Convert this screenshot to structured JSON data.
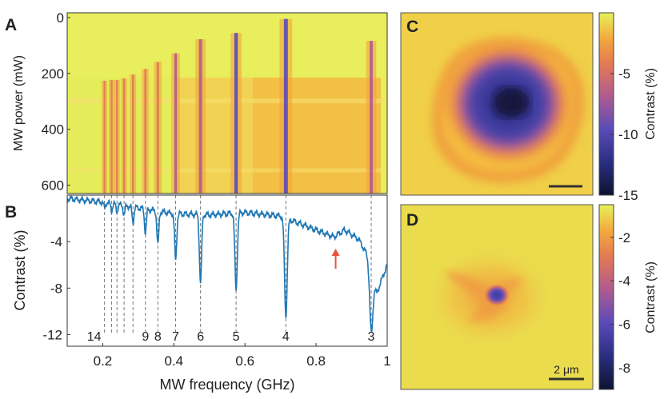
{
  "colors": {
    "low": "#0d1330",
    "mid": "#5a4bb8",
    "midhigh": "#e07a55",
    "high": "#e6f25a",
    "line": "#1f77b4",
    "arrow": "#e8553a"
  },
  "chart_data": [
    {
      "panel": "A",
      "type": "heatmap",
      "xlabel": "",
      "ylabel": "MW power (mW)",
      "xlim": [
        0.1,
        1.0
      ],
      "ylim": [
        0,
        630
      ],
      "ytick_labels": [
        "0",
        "200",
        "400",
        "600"
      ],
      "yticks": [
        0,
        200,
        400,
        600
      ],
      "resonance_frequencies_ghz": [
        0.205,
        0.225,
        0.24,
        0.26,
        0.285,
        0.32,
        0.355,
        0.405,
        0.475,
        0.575,
        0.715,
        0.955
      ],
      "contrast_range_percent": [
        -15,
        0
      ]
    },
    {
      "panel": "B",
      "type": "line",
      "xlabel": "MW frequency (GHz)",
      "ylabel": "Contrast (%)",
      "xlim": [
        0.1,
        1.0
      ],
      "ylim": [
        -13,
        0
      ],
      "xticks": [
        0.2,
        0.4,
        0.6,
        0.8,
        1.0
      ],
      "xtick_labels": [
        "0.2",
        "0.4",
        "0.6",
        "0.8",
        "1"
      ],
      "yticks": [
        -4,
        -8,
        -12
      ],
      "ytick_labels": [
        "-4",
        "-8",
        "-12"
      ],
      "baseline": [
        [
          0.1,
          -0.3
        ],
        [
          0.2,
          -0.6
        ],
        [
          0.3,
          -1.1
        ],
        [
          0.4,
          -1.6
        ],
        [
          0.5,
          -1.7
        ],
        [
          0.6,
          -1.5
        ],
        [
          0.7,
          -1.8
        ],
        [
          0.8,
          -3.0
        ],
        [
          0.85,
          -3.6
        ],
        [
          0.88,
          -3.0
        ],
        [
          0.92,
          -3.8
        ],
        [
          0.95,
          -5.5
        ],
        [
          0.97,
          -8.5
        ],
        [
          0.99,
          -6.8
        ],
        [
          1.0,
          -6.0
        ]
      ],
      "dips": [
        {
          "x": 0.205,
          "depth": 0.5,
          "label": "14"
        },
        {
          "x": 0.225,
          "depth": 0.6,
          "label": ""
        },
        {
          "x": 0.24,
          "depth": 0.6,
          "label": ""
        },
        {
          "x": 0.26,
          "depth": 0.8,
          "label": ""
        },
        {
          "x": 0.285,
          "depth": 1.3,
          "label": ""
        },
        {
          "x": 0.32,
          "depth": 2.0,
          "label": "9"
        },
        {
          "x": 0.355,
          "depth": 2.9,
          "label": "8"
        },
        {
          "x": 0.405,
          "depth": 4.0,
          "label": "7"
        },
        {
          "x": 0.475,
          "depth": 5.8,
          "label": "6"
        },
        {
          "x": 0.575,
          "depth": 6.6,
          "label": "5"
        },
        {
          "x": 0.715,
          "depth": 8.4,
          "label": "4"
        },
        {
          "x": 0.955,
          "depth": 5.6,
          "label": "3"
        }
      ],
      "arrow_x": 0.855
    },
    {
      "panel": "C",
      "type": "heatmap",
      "colorbar_label": "Contrast (%)",
      "colorbar_range": [
        -15,
        0
      ],
      "colorbar_ticks": [
        -5,
        -10,
        -15
      ],
      "colorbar_tick_labels": [
        "-5",
        "-10",
        "-15"
      ]
    },
    {
      "panel": "D",
      "type": "heatmap",
      "colorbar_label": "Contrast (%)",
      "colorbar_range": [
        -9,
        -0.5
      ],
      "colorbar_ticks": [
        -2,
        -4,
        -6,
        -8
      ],
      "colorbar_tick_labels": [
        "-2",
        "-4",
        "-6",
        "-8"
      ],
      "scale_bar_label": "2 μm"
    }
  ],
  "labels": {
    "panel_a": "A",
    "panel_b": "B",
    "panel_c": "C",
    "panel_d": "D",
    "ylabel_a": "MW power (mW)",
    "ylabel_b": "Contrast (%)",
    "xlabel_b": "MW frequency (GHz)",
    "cbar_c": "Contrast (%)",
    "cbar_d": "Contrast (%)",
    "scale_bar": "2 μm"
  }
}
